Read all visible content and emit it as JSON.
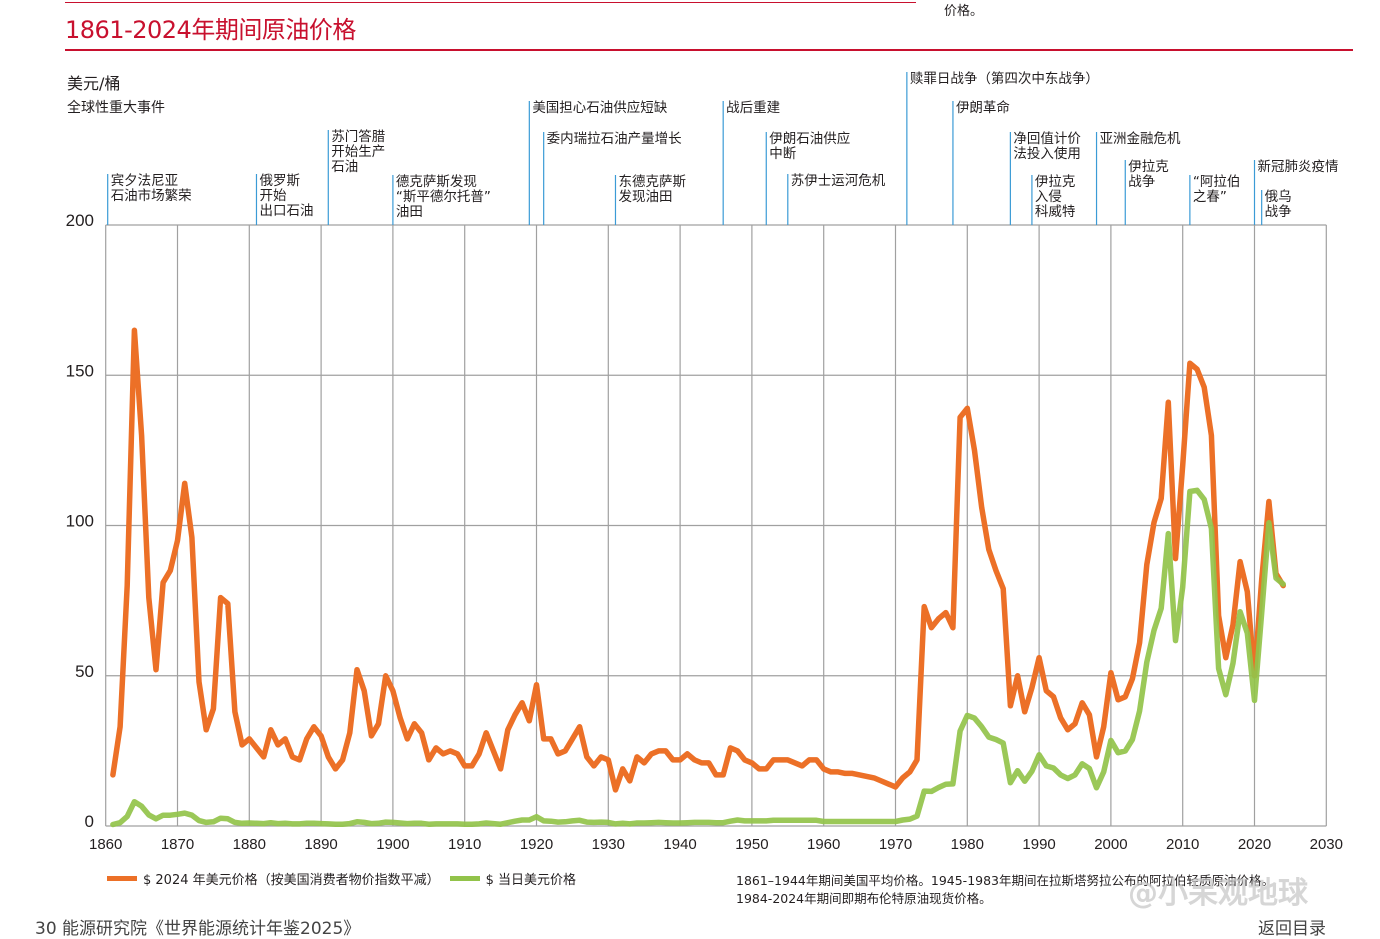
{
  "header": {
    "title": "1861-2024年期间原油价格",
    "top_fragment": "价格。"
  },
  "chart_data": {
    "type": "line",
    "title": "1861-2024年期间原油价格",
    "ylabel": "美元/桶",
    "events_heading": "全球性重大事件",
    "xlim": [
      1860,
      2030
    ],
    "ylim": [
      0,
      200
    ],
    "x_ticks": [
      "1860",
      "1870",
      "1880",
      "1890",
      "1900",
      "1910",
      "1920",
      "1930",
      "1940",
      "1950",
      "1960",
      "1970",
      "1980",
      "1990",
      "2000",
      "2010",
      "2020",
      "2030"
    ],
    "y_ticks": [
      "0",
      "50",
      "100",
      "150",
      "200"
    ],
    "grid": true,
    "legend_position": "bottom-left",
    "colors": {
      "real": "#ec7027",
      "nominal": "#92c34a",
      "event_line": "#3b9bd6",
      "title": "#c8102e"
    },
    "series": [
      {
        "name": "$ 2024 年美元价格（按美国消费者物价指数平减）",
        "key": "real",
        "values": {
          "1861": 17,
          "1862": 33,
          "1863": 80,
          "1864": 165,
          "1865": 130,
          "1866": 76,
          "1867": 52,
          "1868": 81,
          "1869": 85,
          "1870": 95,
          "1871": 114,
          "1872": 96,
          "1873": 48,
          "1874": 32,
          "1875": 39,
          "1876": 76,
          "1877": 74,
          "1878": 38,
          "1879": 27,
          "1880": 29,
          "1881": 26,
          "1882": 23,
          "1883": 32,
          "1884": 27,
          "1885": 29,
          "1886": 23,
          "1887": 22,
          "1888": 29,
          "1889": 33,
          "1890": 30,
          "1891": 23,
          "1892": 19,
          "1893": 22,
          "1894": 31,
          "1895": 52,
          "1896": 45,
          "1897": 30,
          "1898": 34,
          "1899": 50,
          "1900": 45,
          "1901": 36,
          "1902": 29,
          "1903": 34,
          "1904": 31,
          "1905": 22,
          "1906": 26,
          "1907": 24,
          "1908": 25,
          "1909": 24,
          "1910": 20,
          "1911": 20,
          "1912": 24,
          "1913": 31,
          "1914": 25,
          "1915": 19,
          "1916": 32,
          "1917": 37,
          "1918": 41,
          "1919": 35,
          "1920": 47,
          "1921": 29,
          "1922": 29,
          "1923": 24,
          "1924": 25,
          "1925": 29,
          "1926": 33,
          "1927": 23,
          "1928": 20,
          "1929": 23,
          "1930": 22,
          "1931": 12,
          "1932": 19,
          "1933": 15,
          "1934": 23,
          "1935": 21,
          "1936": 24,
          "1937": 25,
          "1938": 25,
          "1939": 22,
          "1940": 22,
          "1941": 24,
          "1942": 22,
          "1943": 21,
          "1944": 21,
          "1945": 17,
          "1946": 17,
          "1947": 26,
          "1948": 25,
          "1949": 22,
          "1950": 21,
          "1951": 19,
          "1952": 19,
          "1953": 22,
          "1954": 22,
          "1955": 22,
          "1956": 21,
          "1957": 20,
          "1958": 22,
          "1959": 22,
          "1960": 19,
          "1961": 18,
          "1962": 18,
          "1963": 17.5,
          "1964": 17.5,
          "1965": 17,
          "1966": 16.5,
          "1967": 16,
          "1968": 15,
          "1969": 14,
          "1970": 13,
          "1971": 16,
          "1972": 18,
          "1973": 22,
          "1974": 73,
          "1975": 66,
          "1976": 69,
          "1977": 71,
          "1978": 66,
          "1979": 136,
          "1980": 139,
          "1981": 125,
          "1982": 106,
          "1983": 92,
          "1984": 85,
          "1985": 79,
          "1986": 40,
          "1987": 50,
          "1988": 38,
          "1989": 46,
          "1990": 56,
          "1991": 45,
          "1992": 43,
          "1993": 36,
          "1994": 32,
          "1995": 34,
          "1996": 41,
          "1997": 37,
          "1998": 23,
          "1999": 33,
          "2000": 51,
          "2001": 42,
          "2002": 43,
          "2003": 49,
          "2004": 61,
          "2005": 87,
          "2006": 101,
          "2007": 109,
          "2008": 141,
          "2009": 89,
          "2010": 120,
          "2011": 154,
          "2012": 152,
          "2013": 146,
          "2014": 130,
          "2015": 70,
          "2016": 56,
          "2017": 67,
          "2018": 88,
          "2019": 78,
          "2020": 50,
          "2021": 82,
          "2022": 108,
          "2023": 84,
          "2024": 80
        }
      },
      {
        "name": "$ 当日美元价格",
        "key": "nominal",
        "values": {
          "1861": 0.5,
          "1862": 1.1,
          "1863": 3.2,
          "1864": 8.1,
          "1865": 6.6,
          "1866": 3.7,
          "1867": 2.4,
          "1868": 3.6,
          "1869": 3.6,
          "1870": 3.9,
          "1871": 4.3,
          "1872": 3.6,
          "1873": 1.8,
          "1874": 1.2,
          "1875": 1.4,
          "1876": 2.6,
          "1877": 2.4,
          "1878": 1.2,
          "1879": 0.9,
          "1880": 1.0,
          "1881": 0.9,
          "1882": 0.8,
          "1883": 1.1,
          "1884": 0.8,
          "1885": 0.9,
          "1886": 0.7,
          "1887": 0.7,
          "1888": 0.9,
          "1889": 0.9,
          "1890": 0.8,
          "1891": 0.7,
          "1892": 0.6,
          "1893": 0.6,
          "1894": 0.8,
          "1895": 1.4,
          "1896": 1.2,
          "1897": 0.8,
          "1898": 0.9,
          "1899": 1.3,
          "1900": 1.2,
          "1901": 1.0,
          "1902": 0.8,
          "1903": 0.9,
          "1904": 0.9,
          "1905": 0.6,
          "1906": 0.7,
          "1907": 0.7,
          "1908": 0.7,
          "1909": 0.7,
          "1910": 0.6,
          "1911": 0.6,
          "1912": 0.7,
          "1913": 1.0,
          "1914": 0.8,
          "1915": 0.6,
          "1916": 1.1,
          "1917": 1.6,
          "1918": 2.0,
          "1919": 2.0,
          "1920": 3.1,
          "1921": 1.7,
          "1922": 1.6,
          "1923": 1.3,
          "1924": 1.4,
          "1925": 1.7,
          "1926": 1.9,
          "1927": 1.3,
          "1928": 1.2,
          "1929": 1.3,
          "1930": 1.2,
          "1931": 0.7,
          "1932": 0.9,
          "1933": 0.7,
          "1934": 1.0,
          "1935": 1.0,
          "1936": 1.1,
          "1937": 1.2,
          "1938": 1.1,
          "1939": 1.0,
          "1940": 1.0,
          "1941": 1.1,
          "1942": 1.2,
          "1943": 1.2,
          "1944": 1.2,
          "1945": 1.1,
          "1946": 1.1,
          "1947": 1.6,
          "1948": 2.0,
          "1949": 1.7,
          "1950": 1.7,
          "1951": 1.7,
          "1952": 1.7,
          "1953": 1.9,
          "1954": 1.9,
          "1955": 1.9,
          "1956": 1.9,
          "1957": 1.9,
          "1958": 1.9,
          "1959": 1.9,
          "1960": 1.5,
          "1961": 1.5,
          "1962": 1.5,
          "1963": 1.5,
          "1964": 1.5,
          "1965": 1.5,
          "1966": 1.5,
          "1967": 1.5,
          "1968": 1.5,
          "1969": 1.5,
          "1970": 1.5,
          "1971": 2.0,
          "1972": 2.3,
          "1973": 3.3,
          "1974": 11.6,
          "1975": 11.5,
          "1976": 12.8,
          "1977": 13.9,
          "1978": 14.0,
          "1979": 31.6,
          "1980": 36.8,
          "1981": 35.9,
          "1982": 33.0,
          "1983": 29.6,
          "1984": 28.8,
          "1985": 27.6,
          "1986": 14.4,
          "1987": 18.4,
          "1988": 14.9,
          "1989": 18.2,
          "1990": 23.7,
          "1991": 20.0,
          "1992": 19.3,
          "1993": 17.0,
          "1994": 15.8,
          "1995": 17.0,
          "1996": 20.7,
          "1997": 19.1,
          "1998": 12.7,
          "1999": 18.0,
          "2000": 28.5,
          "2001": 24.4,
          "2002": 25.0,
          "2003": 28.8,
          "2004": 38.3,
          "2005": 54.5,
          "2006": 65.1,
          "2007": 72.4,
          "2008": 97.3,
          "2009": 61.7,
          "2010": 79.5,
          "2011": 111.3,
          "2012": 111.7,
          "2013": 108.7,
          "2014": 99.0,
          "2015": 52.4,
          "2016": 43.7,
          "2017": 54.2,
          "2018": 71.3,
          "2019": 64.2,
          "2020": 41.8,
          "2021": 70.9,
          "2022": 100.9,
          "2023": 82.5,
          "2024": 80.5
        }
      }
    ],
    "events": [
      {
        "year": 1860,
        "lines": [
          "宾夕法尼亚",
          "石油市场繁荣"
        ]
      },
      {
        "year": 1881,
        "lines": [
          "俄罗斯",
          "开始",
          "出口石油"
        ]
      },
      {
        "year": 1891,
        "lines": [
          "苏门答腊",
          "开始生产",
          "石油"
        ]
      },
      {
        "year": 1900,
        "lines": [
          "德克萨斯发现",
          "“斯平德尔托普”",
          "油田"
        ]
      },
      {
        "year": 1919,
        "lines": [
          "美国担心石油供应短缺"
        ]
      },
      {
        "year": 1921,
        "lines": [
          "委内瑞拉石油产量增长"
        ]
      },
      {
        "year": 1931,
        "lines": [
          "东德克萨斯",
          "发现油田"
        ]
      },
      {
        "year": 1946,
        "lines": [
          "战后重建"
        ]
      },
      {
        "year": 1952,
        "lines": [
          "伊朗石油供应",
          "中断"
        ]
      },
      {
        "year": 1955,
        "lines": [
          "苏伊士运河危机"
        ]
      },
      {
        "year": 1972,
        "lines": [
          "赎罪日战争（第四次中东战争）"
        ]
      },
      {
        "year": 1978,
        "lines": [
          "伊朗革命"
        ]
      },
      {
        "year": 1986,
        "lines": [
          "净回值计价",
          "法投入使用"
        ]
      },
      {
        "year": 1989,
        "lines": [
          "伊拉克",
          "入侵",
          "科威特"
        ]
      },
      {
        "year": 1998,
        "lines": [
          "亚洲金融危机"
        ]
      },
      {
        "year": 2002,
        "lines": [
          "伊拉克",
          "战争"
        ]
      },
      {
        "year": 2011,
        "lines": [
          "“阿拉伯",
          "之春”"
        ]
      },
      {
        "year": 2020,
        "lines": [
          "新冠肺炎疫情"
        ]
      },
      {
        "year": 2021,
        "lines": [
          "俄乌",
          "战争"
        ]
      }
    ],
    "note": [
      "1861–1944年期间美国平均价格。1945-1983年期间在拉斯塔努拉公布的阿拉伯轻质原油价格。",
      "1984-2024年期间即期布伦特原油现货价格。"
    ]
  },
  "footer": {
    "source": "30  能源研究院《世界能源统计年鉴2025》",
    "back": "返回目录",
    "watermark": "@小呆观地球"
  }
}
